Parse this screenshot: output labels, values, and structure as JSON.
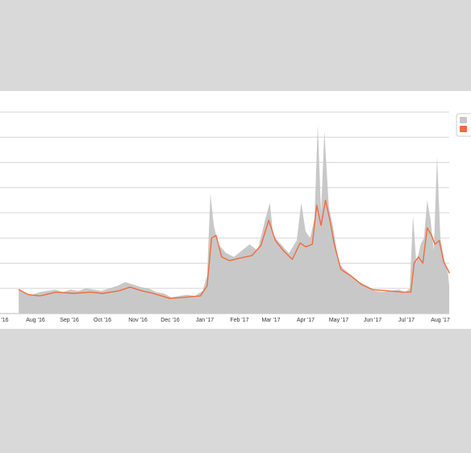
{
  "chart_data": {
    "type": "area",
    "title": "",
    "xlabel": "",
    "ylabel": "",
    "x_tick_labels": [
      "'16",
      "Aug '16",
      "Sep '16",
      "Oct '16",
      "Nov '16",
      "Dec '16",
      "Jan '17",
      "Feb '17",
      "Mar '17",
      "Apr '17",
      "May '17",
      "Jun '17",
      "Jul '17",
      "Aug '17"
    ],
    "grid": "horizontal",
    "legend_position": "top-right",
    "series": [
      {
        "kind": "area",
        "color": "#c8c8c8",
        "points": [
          [
            "2016-07-15",
            20
          ],
          [
            "2016-07-22",
            16
          ],
          [
            "2016-07-29",
            15
          ],
          [
            "2016-08-05",
            17
          ],
          [
            "2016-08-12",
            18
          ],
          [
            "2016-08-19",
            19
          ],
          [
            "2016-08-26",
            17
          ],
          [
            "2016-09-02",
            19
          ],
          [
            "2016-09-09",
            18
          ],
          [
            "2016-09-16",
            20
          ],
          [
            "2016-09-23",
            19
          ],
          [
            "2016-09-30",
            18
          ],
          [
            "2016-10-07",
            20
          ],
          [
            "2016-10-14",
            22
          ],
          [
            "2016-10-21",
            25
          ],
          [
            "2016-10-28",
            23
          ],
          [
            "2016-11-04",
            21
          ],
          [
            "2016-11-11",
            20
          ],
          [
            "2016-11-18",
            17
          ],
          [
            "2016-11-25",
            16
          ],
          [
            "2016-12-02",
            13
          ],
          [
            "2016-12-09",
            14
          ],
          [
            "2016-12-16",
            15
          ],
          [
            "2016-12-23",
            14
          ],
          [
            "2016-12-30",
            18
          ],
          [
            "2017-01-03",
            30
          ],
          [
            "2017-01-06",
            95
          ],
          [
            "2017-01-09",
            70
          ],
          [
            "2017-01-13",
            55
          ],
          [
            "2017-01-20",
            48
          ],
          [
            "2017-01-27",
            45
          ],
          [
            "2017-02-03",
            50
          ],
          [
            "2017-02-10",
            55
          ],
          [
            "2017-02-17",
            50
          ],
          [
            "2017-02-24",
            75
          ],
          [
            "2017-02-28",
            88
          ],
          [
            "2017-03-03",
            62
          ],
          [
            "2017-03-10",
            55
          ],
          [
            "2017-03-17",
            48
          ],
          [
            "2017-03-24",
            58
          ],
          [
            "2017-03-28",
            88
          ],
          [
            "2017-04-01",
            65
          ],
          [
            "2017-04-05",
            60
          ],
          [
            "2017-04-09",
            75
          ],
          [
            "2017-04-12",
            150
          ],
          [
            "2017-04-15",
            80
          ],
          [
            "2017-04-18",
            145
          ],
          [
            "2017-04-22",
            85
          ],
          [
            "2017-04-26",
            68
          ],
          [
            "2017-05-01",
            40
          ],
          [
            "2017-05-06",
            35
          ],
          [
            "2017-05-13",
            30
          ],
          [
            "2017-05-20",
            25
          ],
          [
            "2017-05-27",
            22
          ],
          [
            "2017-06-03",
            18
          ],
          [
            "2017-06-10",
            17
          ],
          [
            "2017-06-17",
            18
          ],
          [
            "2017-06-24",
            19
          ],
          [
            "2017-06-30",
            17
          ],
          [
            "2017-07-04",
            20
          ],
          [
            "2017-07-07",
            78
          ],
          [
            "2017-07-10",
            40
          ],
          [
            "2017-07-14",
            55
          ],
          [
            "2017-07-17",
            60
          ],
          [
            "2017-07-20",
            90
          ],
          [
            "2017-07-23",
            75
          ],
          [
            "2017-07-26",
            50
          ],
          [
            "2017-07-29",
            125
          ],
          [
            "2017-08-01",
            60
          ],
          [
            "2017-08-04",
            45
          ],
          [
            "2017-08-08",
            32
          ],
          [
            "2017-08-12",
            22
          ],
          [
            "2017-08-15",
            35
          ]
        ]
      },
      {
        "kind": "line",
        "color": "#f26a3d",
        "points": [
          [
            "2016-07-15",
            19
          ],
          [
            "2016-07-25",
            15
          ],
          [
            "2016-08-05",
            14
          ],
          [
            "2016-08-20",
            17
          ],
          [
            "2016-09-05",
            16
          ],
          [
            "2016-09-20",
            17
          ],
          [
            "2016-10-01",
            16
          ],
          [
            "2016-10-15",
            18
          ],
          [
            "2016-10-25",
            21
          ],
          [
            "2016-11-05",
            18
          ],
          [
            "2016-11-15",
            16
          ],
          [
            "2016-12-01",
            12
          ],
          [
            "2016-12-15",
            13
          ],
          [
            "2016-12-28",
            14
          ],
          [
            "2017-01-03",
            22
          ],
          [
            "2017-01-07",
            60
          ],
          [
            "2017-01-11",
            62
          ],
          [
            "2017-01-16",
            45
          ],
          [
            "2017-01-23",
            42
          ],
          [
            "2017-02-01",
            44
          ],
          [
            "2017-02-12",
            46
          ],
          [
            "2017-02-20",
            54
          ],
          [
            "2017-02-27",
            74
          ],
          [
            "2017-03-05",
            58
          ],
          [
            "2017-03-12",
            50
          ],
          [
            "2017-03-20",
            43
          ],
          [
            "2017-03-27",
            56
          ],
          [
            "2017-04-01",
            53
          ],
          [
            "2017-04-07",
            55
          ],
          [
            "2017-04-11",
            86
          ],
          [
            "2017-04-15",
            70
          ],
          [
            "2017-04-19",
            90
          ],
          [
            "2017-04-23",
            74
          ],
          [
            "2017-04-27",
            55
          ],
          [
            "2017-05-03",
            35
          ],
          [
            "2017-05-12",
            30
          ],
          [
            "2017-05-22",
            23
          ],
          [
            "2017-06-01",
            19
          ],
          [
            "2017-06-15",
            18
          ],
          [
            "2017-06-28",
            17
          ],
          [
            "2017-07-05",
            17
          ],
          [
            "2017-07-08",
            40
          ],
          [
            "2017-07-12",
            45
          ],
          [
            "2017-07-16",
            40
          ],
          [
            "2017-07-20",
            68
          ],
          [
            "2017-07-24",
            62
          ],
          [
            "2017-07-27",
            55
          ],
          [
            "2017-07-31",
            58
          ],
          [
            "2017-08-04",
            41
          ],
          [
            "2017-08-09",
            33
          ],
          [
            "2017-08-15",
            32
          ]
        ]
      }
    ]
  }
}
